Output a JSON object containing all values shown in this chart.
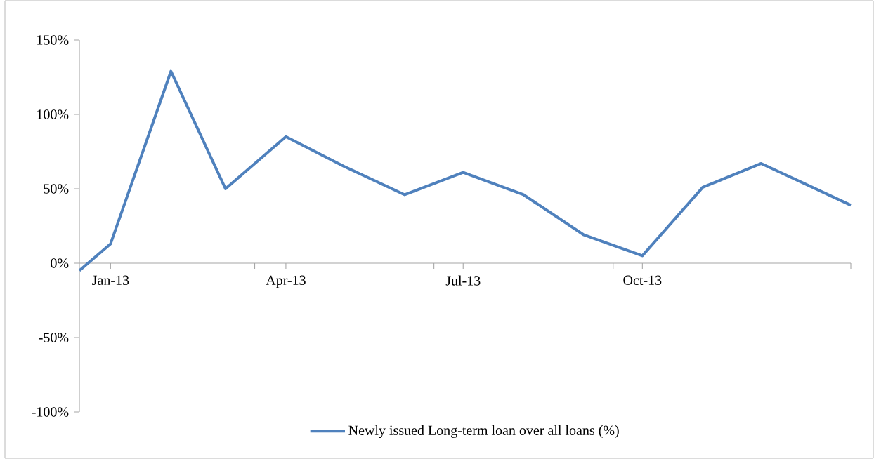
{
  "chart_data": {
    "type": "line",
    "x": [
      "2012-12-16",
      "2013-01",
      "2013-02",
      "2013-03",
      "2013-04",
      "2013-05",
      "2013-06",
      "2013-07",
      "2013-08",
      "2013-09",
      "2013-10",
      "2013-11",
      "2013-12",
      "2014-01-16"
    ],
    "series": [
      {
        "name": "Newly issued Long-term loan over all loans (%)",
        "color": "#4f81bd",
        "values": [
          -5,
          13,
          129,
          50,
          85,
          65,
          46,
          61,
          46,
          19,
          5,
          51,
          67,
          39
        ]
      }
    ],
    "xlim": [
      "2012-12-16",
      "2014-01-16"
    ],
    "xticks": [
      {
        "value": "2012-12-16",
        "label": null
      },
      {
        "value": "2013-01",
        "label": "Jan-13"
      },
      {
        "value": "2013-03-16",
        "label": null
      },
      {
        "value": "2013-04",
        "label": "Apr-13"
      },
      {
        "value": "2013-06-16",
        "label": null
      },
      {
        "value": "2013-07",
        "label": "Jul-13"
      },
      {
        "value": "2013-09-16",
        "label": null
      },
      {
        "value": "2013-10",
        "label": "Oct-13"
      },
      {
        "value": "2014-01-16",
        "label": null
      }
    ],
    "ylim": [
      -100,
      150
    ],
    "yticks": [
      {
        "value": -100,
        "label": "-100%"
      },
      {
        "value": -50,
        "label": "-50%"
      },
      {
        "value": 0,
        "label": "0%"
      },
      {
        "value": 50,
        "label": "50%"
      },
      {
        "value": 100,
        "label": "100%"
      },
      {
        "value": 150,
        "label": "150%"
      }
    ],
    "grid": false,
    "legend": "bottom",
    "marker": "none",
    "line_style": "solid"
  }
}
